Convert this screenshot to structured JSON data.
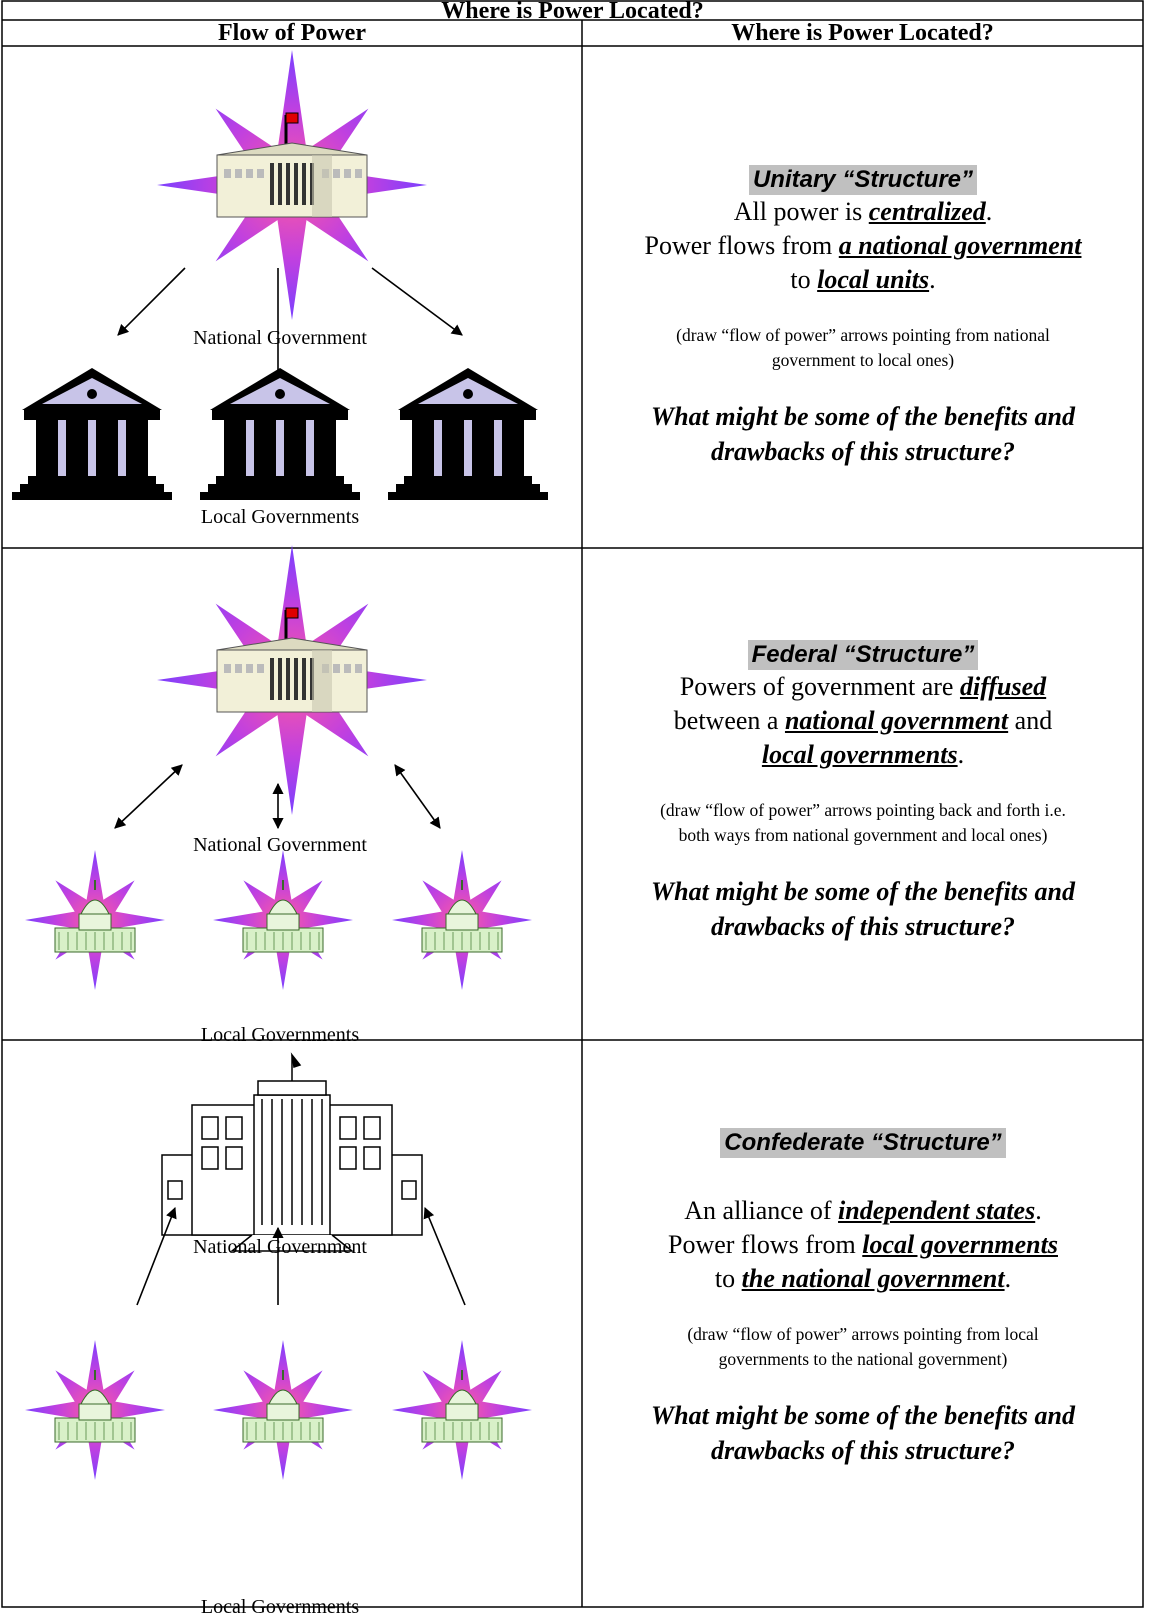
{
  "table": {
    "title": "Where is Power Located?",
    "headers": [
      "Flow of Power",
      "Where is Power Located?"
    ],
    "rows": [
      {
        "national": "National Government",
        "local": "Local Governments",
        "heading": "Unitary “Structure”",
        "lines": [
          [
            {
              "text": "All power is "
            },
            {
              "text": "centralized",
              "em": true
            },
            {
              "text": "."
            }
          ],
          [
            {
              "text": "Power flows from "
            },
            {
              "text": "a national government",
              "em": true
            }
          ],
          [
            {
              "text": "to "
            },
            {
              "text": "local units",
              "em": true
            },
            {
              "text": "."
            }
          ]
        ],
        "note": [
          "(draw “flow of power” arrows pointing from national",
          "government to local ones)"
        ],
        "question": [
          "What might be some of the benefits and",
          "drawbacks of this structure?"
        ]
      },
      {
        "national": "National Government",
        "local": "Local Governments",
        "heading": "Federal “Structure”",
        "lines": [
          [
            {
              "text": "Powers of government are "
            },
            {
              "text": "diffused",
              "em": true
            }
          ],
          [
            {
              "text": "between a "
            },
            {
              "text": "national government",
              "em": true
            },
            {
              "text": " and"
            }
          ],
          [
            {
              "text": "local governments",
              "em": true
            },
            {
              "text": "."
            }
          ]
        ],
        "note": [
          "(draw “flow of power” arrows pointing back and forth i.e.",
          "both ways from national government and local ones)"
        ],
        "question": [
          "What might be some of the benefits and",
          "drawbacks of this structure?"
        ]
      },
      {
        "national": "National Government",
        "local": "Local Governments",
        "heading": "Confederate “Structure”",
        "lines": [
          [
            {
              "text": "An alliance of "
            },
            {
              "text": "independent states",
              "em": true
            },
            {
              "text": "."
            }
          ],
          [
            {
              "text": "Power flows from "
            },
            {
              "text": "local governments",
              "em": true
            }
          ],
          [
            {
              "text": "to "
            },
            {
              "text": "the national government",
              "em": true
            },
            {
              "text": "."
            }
          ]
        ],
        "note": [
          "(draw “flow of power” arrows pointing from local",
          "governments to the national government)"
        ],
        "question": [
          "What might be some of the benefits and",
          "drawbacks of this structure?"
        ]
      }
    ]
  }
}
